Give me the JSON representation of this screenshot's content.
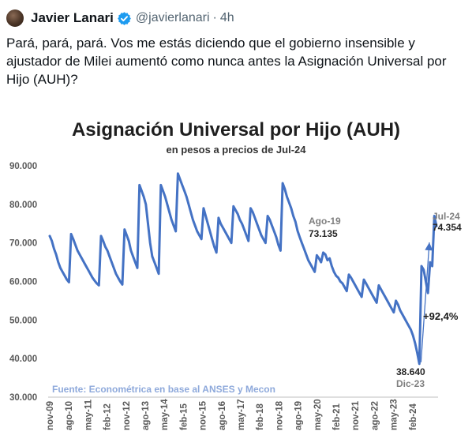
{
  "tweet": {
    "author_name": "Javier Lanari",
    "handle": "@javierlanari",
    "separator": "·",
    "time": "4h",
    "text": "Pará, pará, pará. Vos me estás diciendo que el gobierno insensible y ajustador de Milei aumentó como nunca antes la Asignación Universal por Hijo (AUH)?",
    "icons": {
      "verified": "verified-badge-icon"
    },
    "colors": {
      "verified": "#1d9bf0",
      "handle": "#536471"
    }
  },
  "chart_data": {
    "type": "line",
    "title": "Asignación Universal por Hijo (AUH)",
    "subtitle": "en pesos a precios de Jul-24",
    "source": "Fuente: Econométrica en base al ANSES y Mecon",
    "ylim": [
      30000,
      90000
    ],
    "y_ticks": [
      "30.000",
      "40.000",
      "50.000",
      "60.000",
      "70.000",
      "80.000",
      "90.000"
    ],
    "x_ticks": [
      "nov-09",
      "ago-10",
      "may-11",
      "feb-12",
      "nov-12",
      "ago-13",
      "may-14",
      "feb-15",
      "nov-15",
      "ago-16",
      "may-17",
      "feb-18",
      "nov-18",
      "ago-19",
      "may-20",
      "feb-21",
      "nov-21",
      "ago-22",
      "may-23",
      "feb-24"
    ],
    "series_color": "#4472c4",
    "arrow_color": "#4472c4",
    "annotations": [
      {
        "label": "Ago-19",
        "value_text": "73.135"
      },
      {
        "label": "Jul-24",
        "value_text": "74.354"
      },
      {
        "label": "Dic-23",
        "value_text": "38.640"
      },
      {
        "label": "+92,4%"
      }
    ],
    "series": [
      {
        "values": [
          71800,
          70500,
          68500,
          67000,
          65000,
          63500,
          62500,
          61500,
          60500,
          59800,
          72300,
          71000,
          69500,
          68000,
          67000,
          66000,
          65000,
          64000,
          63000,
          62000,
          61000,
          60200,
          59500,
          59000,
          71800,
          70500,
          69000,
          68000,
          66500,
          65000,
          63500,
          62000,
          61000,
          60000,
          59200,
          73500,
          72000,
          70500,
          68000,
          66500,
          65000,
          63500,
          85000,
          83500,
          82000,
          80000,
          75000,
          70000,
          66500,
          65000,
          63500,
          62000,
          85000,
          83500,
          82000,
          80000,
          78000,
          76000,
          74500,
          73000,
          88000,
          86500,
          85000,
          83500,
          82000,
          80000,
          78000,
          76000,
          74500,
          73000,
          72000,
          71000,
          79000,
          77000,
          75000,
          73000,
          71000,
          69000,
          67500,
          76500,
          75000,
          74000,
          73000,
          72000,
          71000,
          70000,
          79500,
          78500,
          77500,
          76000,
          75000,
          73500,
          72000,
          70500,
          79000,
          78000,
          76500,
          75000,
          73500,
          72000,
          71000,
          70000,
          77000,
          76000,
          74500,
          73000,
          71500,
          69500,
          68000,
          85500,
          84000,
          82000,
          80500,
          79000,
          77000,
          75500,
          73135,
          71500,
          70000,
          68500,
          67000,
          65500,
          64500,
          63500,
          62500,
          66800,
          66000,
          65000,
          67500,
          67000,
          65500,
          66000,
          64000,
          62500,
          61500,
          61000,
          60000,
          59500,
          58500,
          57500,
          61800,
          61000,
          60000,
          59000,
          58000,
          57000,
          56000,
          60500,
          59500,
          58500,
          57500,
          56500,
          55500,
          54500,
          59000,
          58000,
          57000,
          56000,
          55000,
          54000,
          53000,
          52000,
          55000,
          54000,
          52500,
          51500,
          50500,
          49500,
          48500,
          47500,
          46000,
          44000,
          41500,
          38640,
          64000,
          63000,
          60000,
          57000,
          65000,
          64000,
          77000,
          74354
        ]
      }
    ]
  }
}
